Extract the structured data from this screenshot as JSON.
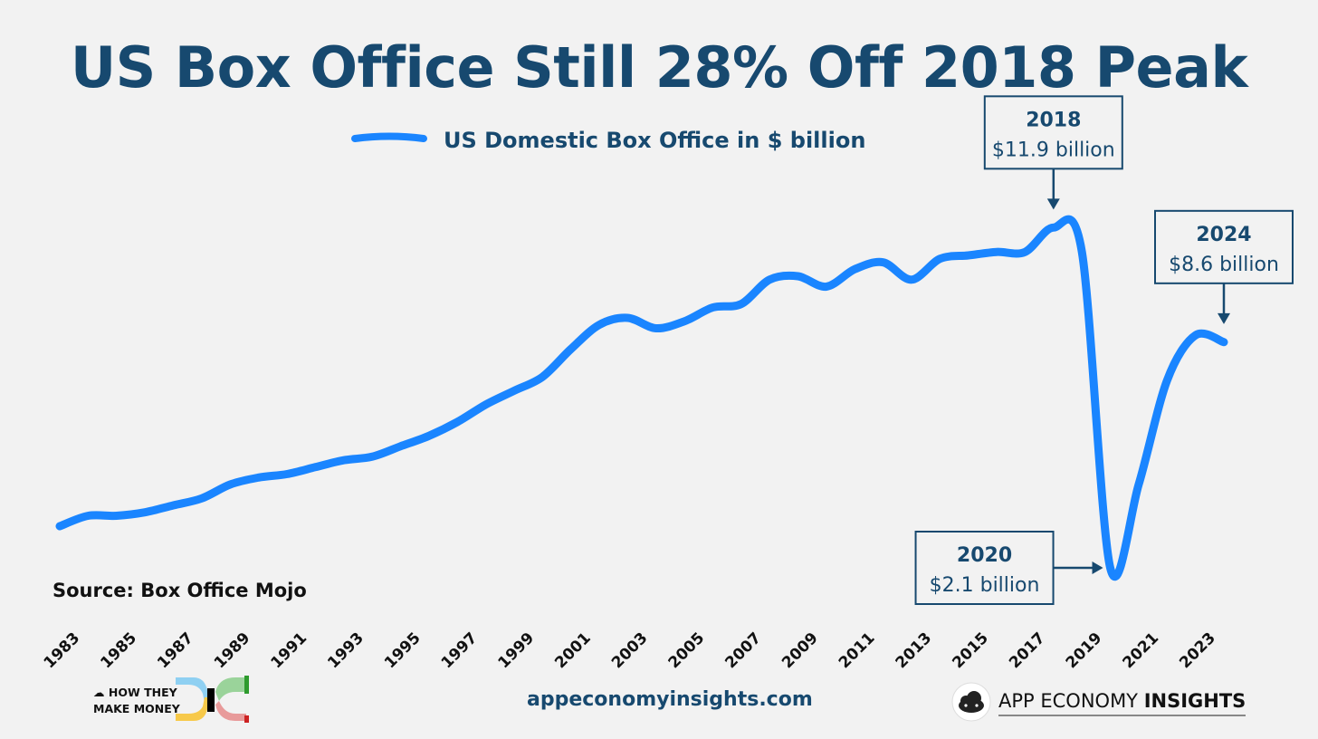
{
  "title": "US Box Office Still 28% Off 2018 Peak",
  "source": "Source: Box Office Mojo",
  "footer": {
    "htm_line1": "HOW THEY",
    "htm_line2": "MAKE MONEY",
    "website": "appeconomyinsights.com",
    "brand_regular": "APP ECONOMY ",
    "brand_bold": "INSIGHTS"
  },
  "colors": {
    "line": "#1a85ff",
    "text_dark": "#17496f",
    "background": "#f2f2f2"
  },
  "chart_data": {
    "type": "line",
    "x": [
      1983,
      1984,
      1985,
      1986,
      1987,
      1988,
      1989,
      1990,
      1991,
      1992,
      1993,
      1994,
      1995,
      1996,
      1997,
      1998,
      1999,
      2000,
      2001,
      2002,
      2003,
      2004,
      2005,
      2006,
      2007,
      2008,
      2009,
      2010,
      2011,
      2012,
      2013,
      2014,
      2015,
      2016,
      2017,
      2018,
      2019,
      2020,
      2021,
      2022,
      2023,
      2024
    ],
    "series": [
      {
        "name": "US Domestic Box Office in $ billion",
        "values": [
          3.3,
          3.6,
          3.6,
          3.7,
          3.9,
          4.1,
          4.5,
          4.7,
          4.8,
          5.0,
          5.2,
          5.3,
          5.6,
          5.9,
          6.3,
          6.8,
          7.2,
          7.6,
          8.4,
          9.1,
          9.3,
          9.0,
          9.2,
          9.6,
          9.7,
          10.4,
          10.5,
          10.2,
          10.7,
          10.9,
          10.4,
          11.0,
          11.1,
          11.2,
          11.2,
          11.9,
          11.2,
          2.1,
          4.5,
          7.5,
          8.8,
          8.6
        ]
      }
    ],
    "x_ticks": [
      "1983",
      "1985",
      "1987",
      "1989",
      "1991",
      "1993",
      "1995",
      "1997",
      "1999",
      "2001",
      "2003",
      "2005",
      "2007",
      "2009",
      "2011",
      "2013",
      "2015",
      "2017",
      "2019",
      "2021",
      "2023"
    ],
    "ylim": [
      1.5,
      13.5
    ],
    "ylabel": "",
    "xlabel": "",
    "grid": false,
    "legend": "top-center",
    "annotations": [
      {
        "year": "2018",
        "label": "$11.9 billion",
        "x": 2018,
        "y": 11.9,
        "placement": "above"
      },
      {
        "year": "2024",
        "label": "$8.6 billion",
        "x": 2024,
        "y": 8.6,
        "placement": "above"
      },
      {
        "year": "2020",
        "label": "$2.1 billion",
        "x": 2020,
        "y": 2.1,
        "placement": "left"
      }
    ]
  }
}
